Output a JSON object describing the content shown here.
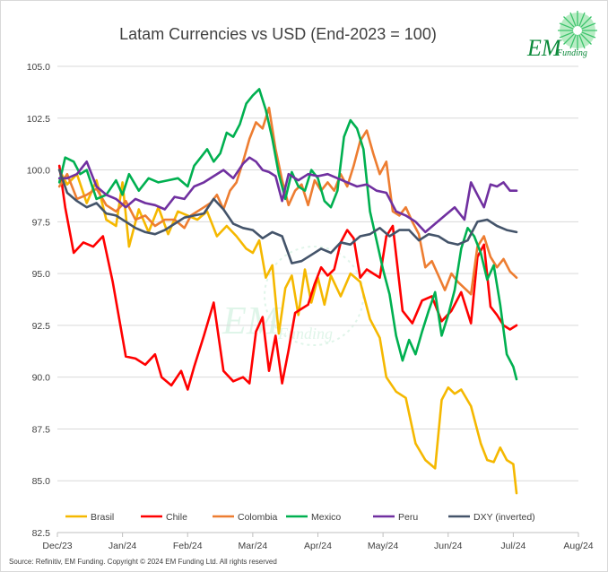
{
  "logo": {
    "initials": "EM",
    "word": "Funding"
  },
  "source": "Source: Refinitiv, EM Funding.  Copyright © 2024 EM Funding Ltd. All rights reserved",
  "chart_data": {
    "type": "line",
    "title": "Latam Currencies vs USD (End-2023 = 100)",
    "xlabel": "",
    "ylabel": "",
    "ylim": [
      82.5,
      105.0
    ],
    "yticks": [
      82.5,
      85.0,
      87.5,
      90.0,
      92.5,
      95.0,
      97.5,
      100.0,
      102.5,
      105.0
    ],
    "ytick_labels": [
      "82.5",
      "85.0",
      "87.5",
      "90.0",
      "92.5",
      "95.0",
      "97.5",
      "100.0",
      "102.5",
      "105.0"
    ],
    "xlim": [
      0,
      8
    ],
    "xtick_labels": [
      "Dec/23",
      "Jan/24",
      "Feb/24",
      "Mar/24",
      "Apr/24",
      "May/24",
      "Jun/24",
      "Jul/24",
      "Aug/24"
    ],
    "grid": true,
    "legend_position": "bottom",
    "series": [
      {
        "name": "Brasil",
        "color": "#f5b800",
        "x": [
          0.03,
          0.15,
          0.3,
          0.45,
          0.6,
          0.75,
          0.9,
          1.0,
          1.1,
          1.25,
          1.4,
          1.55,
          1.7,
          1.85,
          2.0,
          2.15,
          2.3,
          2.45,
          2.6,
          2.75,
          2.9,
          3.0,
          3.1,
          3.2,
          3.3,
          3.4,
          3.5,
          3.6,
          3.7,
          3.8,
          3.9,
          4.0,
          4.1,
          4.2,
          4.35,
          4.5,
          4.65,
          4.8,
          4.95,
          5.05,
          5.2,
          5.35,
          5.5,
          5.65,
          5.8,
          5.9,
          6.0,
          6.1,
          6.2,
          6.35,
          6.5,
          6.6,
          6.7,
          6.8,
          6.9,
          7.0,
          7.05
        ],
        "values": [
          100.0,
          99.3,
          99.8,
          98.4,
          99.5,
          97.6,
          97.3,
          99.4,
          96.3,
          98.1,
          97.0,
          98.2,
          96.9,
          98.0,
          97.8,
          97.6,
          98.0,
          96.8,
          97.3,
          96.8,
          96.2,
          96.0,
          96.6,
          94.8,
          95.4,
          92.1,
          94.3,
          94.9,
          93.0,
          95.2,
          93.6,
          94.8,
          93.5,
          94.9,
          93.9,
          95.0,
          94.6,
          92.8,
          91.9,
          90.0,
          89.3,
          89.0,
          86.8,
          86.0,
          85.6,
          88.9,
          89.5,
          89.2,
          89.4,
          88.6,
          86.8,
          86.0,
          85.9,
          86.6,
          86.0,
          85.8,
          84.4
        ]
      },
      {
        "name": "Chile",
        "color": "#ff0000",
        "x": [
          0.03,
          0.12,
          0.25,
          0.4,
          0.55,
          0.7,
          0.85,
          0.95,
          1.05,
          1.2,
          1.35,
          1.5,
          1.6,
          1.75,
          1.9,
          2.0,
          2.1,
          2.25,
          2.4,
          2.55,
          2.7,
          2.85,
          2.95,
          3.05,
          3.15,
          3.25,
          3.35,
          3.45,
          3.55,
          3.65,
          3.75,
          3.85,
          3.95,
          4.05,
          4.15,
          4.25,
          4.35,
          4.45,
          4.55,
          4.65,
          4.75,
          4.85,
          4.95,
          5.05,
          5.15,
          5.3,
          5.45,
          5.6,
          5.75,
          5.9,
          6.05,
          6.2,
          6.35,
          6.45,
          6.55,
          6.65,
          6.75,
          6.85,
          6.95,
          7.05
        ],
        "values": [
          100.2,
          98.2,
          96.0,
          96.5,
          96.3,
          96.8,
          94.6,
          92.8,
          91.0,
          90.9,
          90.6,
          91.1,
          90.0,
          89.6,
          90.3,
          89.4,
          90.5,
          92.0,
          93.6,
          90.3,
          89.8,
          90.0,
          89.7,
          92.2,
          92.9,
          90.3,
          92.0,
          89.7,
          91.3,
          93.1,
          93.3,
          93.5,
          94.5,
          95.3,
          94.9,
          95.2,
          96.5,
          97.1,
          96.7,
          94.8,
          95.2,
          95.0,
          94.8,
          96.8,
          97.3,
          93.2,
          92.6,
          93.7,
          93.9,
          92.7,
          93.2,
          94.1,
          92.6,
          95.8,
          96.4,
          93.4,
          93.0,
          92.5,
          92.3,
          92.5
        ]
      },
      {
        "name": "Colombia",
        "color": "#ed7d31",
        "x": [
          0.03,
          0.15,
          0.3,
          0.45,
          0.6,
          0.75,
          0.9,
          1.05,
          1.2,
          1.35,
          1.5,
          1.65,
          1.8,
          1.95,
          2.05,
          2.15,
          2.25,
          2.35,
          2.45,
          2.55,
          2.65,
          2.75,
          2.85,
          2.95,
          3.05,
          3.15,
          3.25,
          3.35,
          3.45,
          3.55,
          3.65,
          3.75,
          3.85,
          3.95,
          4.05,
          4.15,
          4.25,
          4.35,
          4.45,
          4.55,
          4.65,
          4.75,
          4.85,
          4.95,
          5.05,
          5.15,
          5.25,
          5.35,
          5.45,
          5.55,
          5.65,
          5.75,
          5.85,
          5.95,
          6.05,
          6.15,
          6.25,
          6.35,
          6.45,
          6.55,
          6.65,
          6.75,
          6.85,
          6.95,
          7.05
        ],
        "values": [
          99.2,
          99.8,
          98.6,
          98.8,
          99.1,
          98.3,
          98.0,
          98.5,
          97.6,
          97.8,
          97.3,
          97.6,
          97.6,
          97.2,
          97.8,
          98.0,
          98.2,
          98.4,
          98.8,
          98.1,
          99.0,
          99.4,
          100.4,
          101.5,
          102.3,
          102.0,
          103.0,
          101.0,
          99.5,
          98.3,
          99.0,
          99.3,
          98.3,
          99.5,
          99.0,
          99.4,
          99.0,
          99.8,
          99.2,
          100.2,
          101.4,
          101.9,
          100.8,
          99.8,
          100.4,
          98.0,
          97.8,
          98.2,
          97.5,
          96.9,
          95.3,
          95.6,
          94.9,
          94.2,
          95.0,
          94.6,
          94.3,
          94.0,
          96.3,
          96.8,
          95.8,
          95.3,
          95.7,
          95.1,
          94.8
        ]
      },
      {
        "name": "Mexico",
        "color": "#00b050",
        "x": [
          0.03,
          0.12,
          0.25,
          0.35,
          0.45,
          0.6,
          0.75,
          0.9,
          1.0,
          1.1,
          1.25,
          1.4,
          1.55,
          1.7,
          1.85,
          2.0,
          2.1,
          2.2,
          2.3,
          2.4,
          2.5,
          2.6,
          2.7,
          2.8,
          2.9,
          3.0,
          3.1,
          3.2,
          3.3,
          3.4,
          3.5,
          3.6,
          3.7,
          3.8,
          3.9,
          4.0,
          4.1,
          4.2,
          4.3,
          4.4,
          4.5,
          4.6,
          4.7,
          4.8,
          4.9,
          5.0,
          5.1,
          5.2,
          5.3,
          5.4,
          5.5,
          5.6,
          5.7,
          5.8,
          5.9,
          6.0,
          6.1,
          6.2,
          6.3,
          6.4,
          6.5,
          6.6,
          6.7,
          6.8,
          6.9,
          7.0,
          7.05
        ],
        "values": [
          99.4,
          100.6,
          100.4,
          99.8,
          100.0,
          98.6,
          98.8,
          99.5,
          98.8,
          99.8,
          99.0,
          99.6,
          99.4,
          99.5,
          99.6,
          99.2,
          100.2,
          100.6,
          101.0,
          100.4,
          100.8,
          101.8,
          101.6,
          102.2,
          103.2,
          103.6,
          103.9,
          102.9,
          101.5,
          99.8,
          98.6,
          99.9,
          99.2,
          99.0,
          100.0,
          99.6,
          98.5,
          98.2,
          99.0,
          101.6,
          102.4,
          102.0,
          101.0,
          98.0,
          96.6,
          95.2,
          94.0,
          92.0,
          90.8,
          91.8,
          91.1,
          92.2,
          93.2,
          94.1,
          92.0,
          93.0,
          94.2,
          96.2,
          97.2,
          96.8,
          96.0,
          94.7,
          95.4,
          93.5,
          91.1,
          90.5,
          89.9
        ]
      },
      {
        "name": "Peru",
        "color": "#7030a0",
        "x": [
          0.03,
          0.15,
          0.3,
          0.45,
          0.6,
          0.75,
          0.9,
          1.05,
          1.2,
          1.35,
          1.5,
          1.65,
          1.8,
          1.95,
          2.1,
          2.25,
          2.4,
          2.55,
          2.7,
          2.85,
          2.95,
          3.05,
          3.15,
          3.25,
          3.35,
          3.45,
          3.55,
          3.7,
          3.85,
          4.0,
          4.15,
          4.3,
          4.45,
          4.6,
          4.75,
          4.9,
          5.05,
          5.2,
          5.35,
          5.5,
          5.65,
          5.8,
          5.95,
          6.1,
          6.25,
          6.35,
          6.45,
          6.55,
          6.65,
          6.75,
          6.85,
          6.95,
          7.05
        ],
        "values": [
          99.6,
          99.6,
          99.8,
          100.4,
          99.2,
          98.8,
          98.6,
          98.2,
          98.6,
          98.4,
          98.3,
          98.1,
          98.7,
          98.6,
          99.2,
          99.4,
          99.7,
          100.0,
          99.6,
          100.3,
          100.6,
          100.4,
          100.0,
          99.9,
          99.7,
          98.5,
          99.8,
          99.5,
          99.8,
          99.7,
          99.8,
          99.6,
          99.4,
          99.2,
          99.3,
          99.0,
          98.9,
          98.0,
          97.8,
          97.5,
          97.0,
          97.4,
          97.8,
          98.2,
          97.6,
          99.4,
          98.8,
          98.2,
          99.3,
          99.2,
          99.4,
          99.0,
          99.0
        ]
      },
      {
        "name": "DXY (inverted)",
        "color": "#44546a",
        "x": [
          0.03,
          0.15,
          0.3,
          0.45,
          0.6,
          0.75,
          0.9,
          1.05,
          1.2,
          1.35,
          1.5,
          1.65,
          1.8,
          1.95,
          2.1,
          2.25,
          2.4,
          2.55,
          2.7,
          2.85,
          3.0,
          3.15,
          3.3,
          3.45,
          3.6,
          3.75,
          3.9,
          4.05,
          4.2,
          4.35,
          4.5,
          4.65,
          4.8,
          4.95,
          5.1,
          5.25,
          5.4,
          5.55,
          5.7,
          5.85,
          6.0,
          6.15,
          6.3,
          6.45,
          6.6,
          6.75,
          6.9,
          7.05
        ],
        "values": [
          100.0,
          98.9,
          98.5,
          98.2,
          98.4,
          97.9,
          97.8,
          97.5,
          97.2,
          97.0,
          96.9,
          97.1,
          97.4,
          97.7,
          97.8,
          97.9,
          98.6,
          98.1,
          97.4,
          97.2,
          97.1,
          96.7,
          97.0,
          96.8,
          95.5,
          95.6,
          95.9,
          96.2,
          96.0,
          96.5,
          96.4,
          96.8,
          96.9,
          97.2,
          96.8,
          97.1,
          97.1,
          96.6,
          96.9,
          96.8,
          96.5,
          96.4,
          96.6,
          97.5,
          97.6,
          97.3,
          97.1,
          97.0
        ]
      }
    ]
  }
}
